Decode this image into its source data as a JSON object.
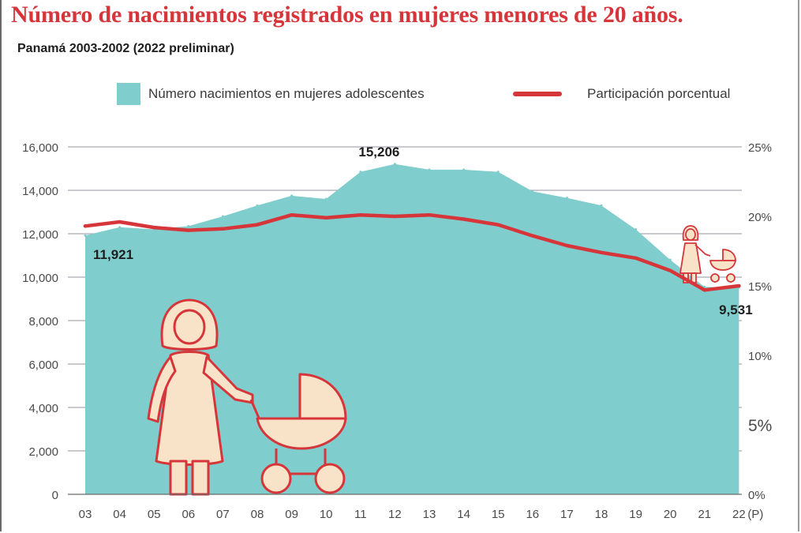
{
  "header": {
    "title": "Número de nacimientos registrados en mujeres menores de 20 años.",
    "subtitle": "Panamá 2003-2002 (2022 preliminar)"
  },
  "legend": {
    "area_label": "Número nacimientos en mujeres adolescentes",
    "line_label": "Participación porcentual"
  },
  "colors": {
    "area": "#7fcdcc",
    "line": "#d6353a",
    "title": "#d6353a",
    "grid": "#a9a9b3",
    "illustration_fill": "#f9e3c8"
  },
  "illustrations": [
    "mother-with-stroller-icon",
    "small-mother-with-stroller-icon"
  ],
  "chart_data": {
    "type": "area",
    "categories": [
      "03",
      "04",
      "05",
      "06",
      "07",
      "08",
      "09",
      "10",
      "11",
      "12",
      "13",
      "14",
      "15",
      "16",
      "17",
      "18",
      "19",
      "20",
      "21",
      "22"
    ],
    "x_tick_labels": [
      "03",
      "04",
      "05",
      "06",
      "07",
      "08",
      "09",
      "10",
      "11",
      "12",
      "13",
      "14",
      "15",
      "16",
      "17",
      "18",
      "19",
      "20",
      "21",
      "22"
    ],
    "x_suffix_label": "(P)",
    "series": [
      {
        "name": "Número nacimientos en mujeres adolescentes",
        "axis": "left",
        "type": "area",
        "values": [
          11921,
          12300,
          12200,
          12350,
          12800,
          13300,
          13750,
          13600,
          14850,
          15206,
          14950,
          14950,
          14850,
          13950,
          13650,
          13300,
          12200,
          10800,
          9550,
          9531
        ]
      },
      {
        "name": "Participación porcentual",
        "axis": "right",
        "type": "line",
        "values": [
          19.3,
          19.6,
          19.2,
          19.0,
          19.1,
          19.4,
          20.1,
          19.9,
          20.1,
          20.0,
          20.1,
          19.8,
          19.4,
          18.6,
          17.9,
          17.4,
          17.0,
          16.1,
          14.7,
          15.0
        ]
      }
    ],
    "y_left": {
      "ylim": [
        0,
        16000
      ],
      "ticks": [
        0,
        2000,
        4000,
        6000,
        8000,
        10000,
        12000,
        14000,
        16000
      ],
      "tick_labels": [
        "0",
        "2,000",
        "4,000",
        "6,000",
        "8,000",
        "10,000",
        "12,000",
        "14,000",
        "16,000"
      ]
    },
    "y_right": {
      "ylim": [
        0,
        25
      ],
      "ticks": [
        0,
        5,
        10,
        15,
        20,
        25
      ],
      "tick_labels": [
        "0%",
        "5%",
        "10%",
        "15%",
        "20%",
        "25%"
      ]
    },
    "annotations": [
      {
        "text": "11,921",
        "category": "03",
        "series": 0
      },
      {
        "text": "15,206",
        "category": "12",
        "series": 0
      },
      {
        "text": "9,531",
        "category": "22",
        "series": 0
      }
    ],
    "grid": true,
    "legend_position": "top"
  }
}
